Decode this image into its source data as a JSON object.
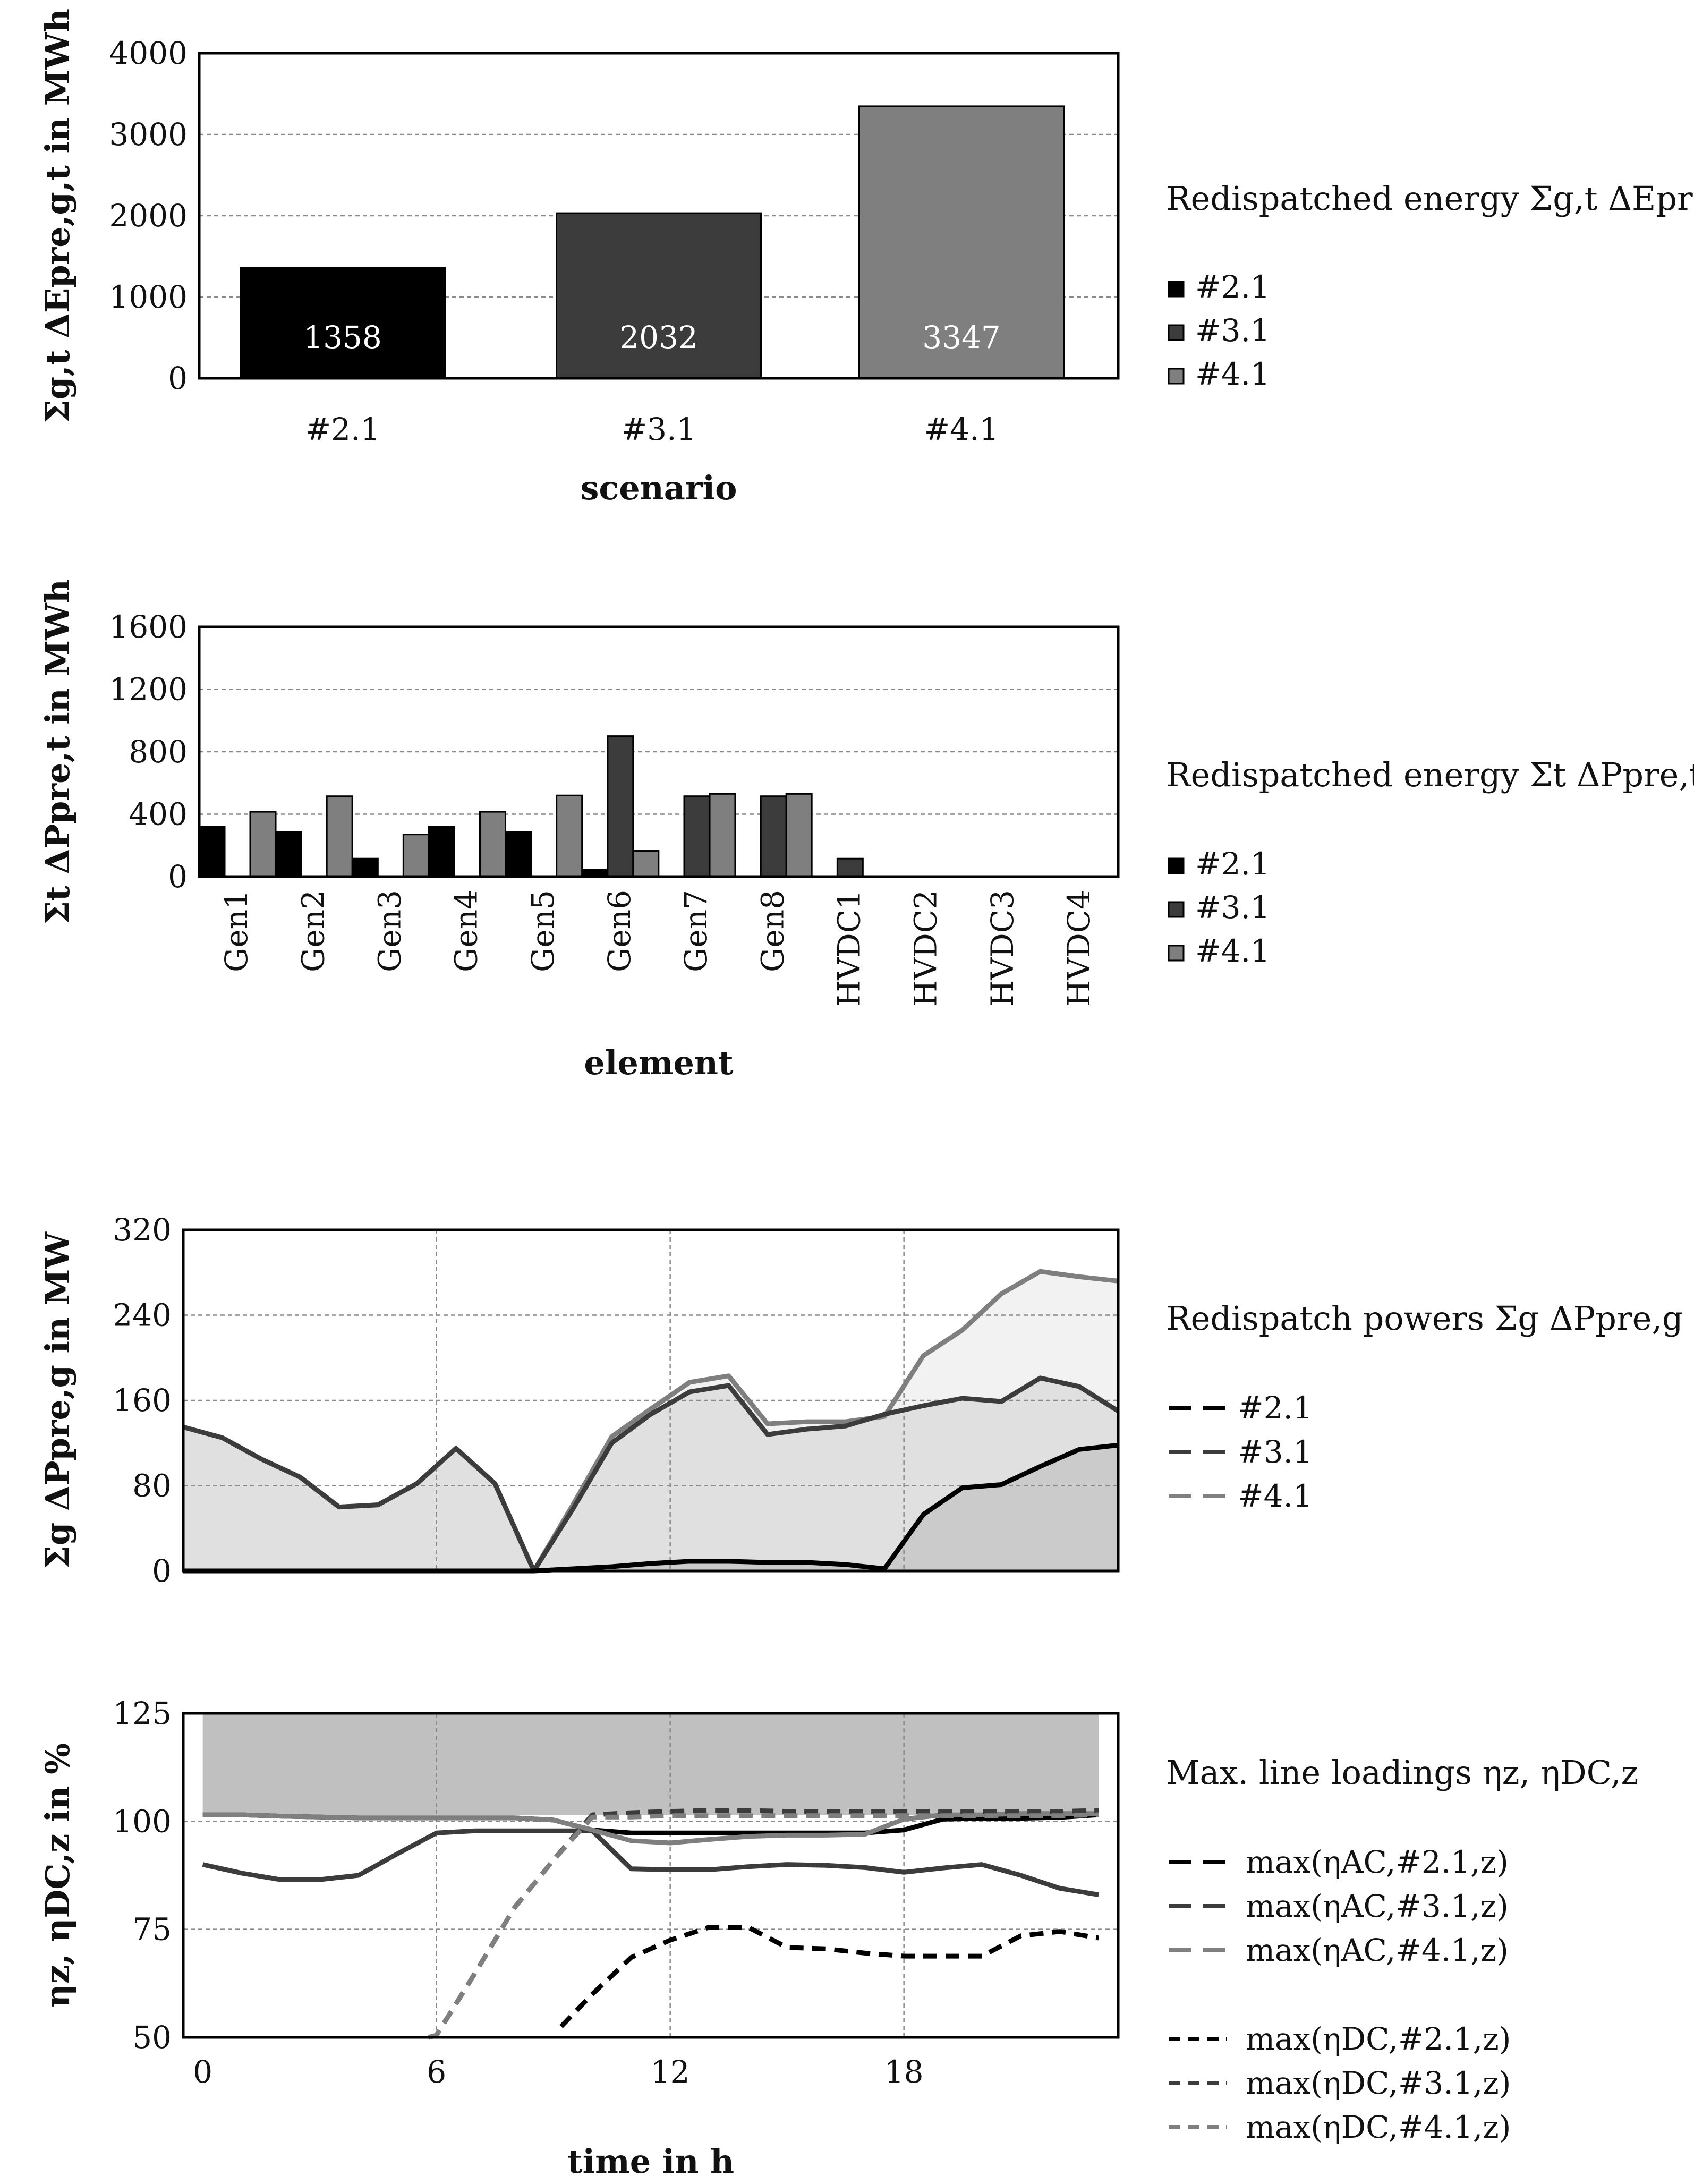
{
  "colors": {
    "s21": "#000000",
    "s31": "#3c3c3c",
    "s41": "#7f7f7f",
    "grid": "#8a8a8a",
    "fill_band": "#c0c0c0",
    "area_light": "#f2f2f2",
    "area_mid": "#e0e0e0",
    "area_dark": "#cbcbcb"
  },
  "chart_data": [
    {
      "id": "chart1",
      "type": "bar",
      "title": "",
      "ylabel": "Σg,t ΔEpre,g,t in MWh",
      "xlabel": "scenario",
      "categories": [
        "#2.1",
        "#3.1",
        "#4.1"
      ],
      "values": [
        1358,
        2032,
        3347
      ],
      "data_labels": [
        "1358",
        "2032",
        "3347"
      ],
      "ylim": [
        0,
        4000
      ],
      "yticks": [
        "0",
        "1000",
        "2000",
        "3000",
        "4000"
      ],
      "grid": true,
      "legend": {
        "title_text": "Redispatched energy Σg,t ΔEpre,g,t",
        "entries": [
          "#2.1",
          "#3.1",
          "#4.1"
        ],
        "placement": "right"
      }
    },
    {
      "id": "chart2",
      "type": "bar",
      "title": "",
      "ylabel": "Σt ΔPpre,t in MWh",
      "xlabel": "element",
      "categories": [
        "Gen1",
        "Gen2",
        "Gen3",
        "Gen4",
        "Gen5",
        "Gen6",
        "Gen7",
        "Gen8",
        "HVDC1",
        "HVDC2",
        "HVDC3",
        "HVDC4"
      ],
      "series": [
        {
          "name": "#2.1",
          "values": [
            320,
            285,
            115,
            320,
            285,
            45,
            0,
            0,
            0,
            0,
            0,
            0
          ]
        },
        {
          "name": "#3.1",
          "values": [
            0,
            0,
            0,
            0,
            0,
            900,
            515,
            515,
            115,
            0,
            0,
            0
          ]
        },
        {
          "name": "#4.1",
          "values": [
            415,
            515,
            270,
            415,
            520,
            165,
            530,
            530,
            0,
            0,
            0,
            0
          ]
        }
      ],
      "ylim": [
        0,
        1600
      ],
      "yticks": [
        "0",
        "400",
        "800",
        "1200",
        "1600"
      ],
      "grid": true,
      "legend": {
        "title_text": "Redispatched energy Σt ΔPpre,t",
        "entries": [
          "#2.1",
          "#3.1",
          "#4.1"
        ],
        "placement": "right"
      }
    },
    {
      "id": "chart3",
      "type": "area",
      "title": "",
      "ylabel": "Σg ΔPpre,g in MW",
      "xlabel": "",
      "x": [
        -0.5,
        0.5,
        1.5,
        2.5,
        3.5,
        4.5,
        5.5,
        6.5,
        7.5,
        8.5,
        9.5,
        10.5,
        11.5,
        12.5,
        13.5,
        14.5,
        15.5,
        16.5,
        17.5,
        18.5,
        19.5,
        20.5,
        21.5,
        22.5,
        23.5
      ],
      "series": [
        {
          "name": "#2.1",
          "values": [
            0,
            0,
            0,
            0,
            0,
            0,
            0,
            0,
            0,
            0,
            2,
            4,
            7,
            9,
            9,
            8,
            8,
            6,
            2,
            53,
            78,
            81,
            98,
            114,
            118
          ]
        },
        {
          "name": "#3.1",
          "values": [
            135,
            125,
            105,
            88,
            60,
            62,
            82,
            115,
            82,
            0,
            58,
            120,
            147,
            168,
            174,
            128,
            133,
            136,
            147,
            155,
            162,
            159,
            181,
            173,
            150
          ]
        },
        {
          "name": "#4.1",
          "values": [
            135,
            125,
            105,
            88,
            60,
            62,
            82,
            115,
            82,
            0,
            62,
            126,
            152,
            177,
            183,
            138,
            140,
            140,
            145,
            202,
            226,
            260,
            281,
            276,
            272
          ]
        }
      ],
      "ylim": [
        0,
        320
      ],
      "yticks": [
        "0",
        "80",
        "160",
        "240",
        "320"
      ],
      "xlim": [
        -0.5,
        23.5
      ],
      "grid": true,
      "legend": {
        "title_text": "Redispatch powers Σg ΔPpre,g",
        "entries": [
          "#2.1",
          "#3.1",
          "#4.1"
        ],
        "placement": "right"
      }
    },
    {
      "id": "chart4",
      "type": "line",
      "title": "",
      "ylabel": "ηz, ηDC,z in %",
      "xlabel": "time in h",
      "xticks": [
        "0",
        "6",
        "12",
        "18"
      ],
      "xlim": [
        -0.5,
        23.5
      ],
      "ylim": [
        50,
        125
      ],
      "yticks": [
        "50",
        "75",
        "100",
        "125"
      ],
      "grid": true,
      "band": {
        "x_from": 0,
        "x_to": 23,
        "y_from": 101.5,
        "y_to": 125
      },
      "series": [
        {
          "name": "max(ηAC,#2.1,z)",
          "style": "solid",
          "x": [
            0,
            1,
            2,
            3,
            4,
            5,
            6,
            7,
            8,
            9,
            10,
            11,
            12,
            13,
            14,
            15,
            16,
            17,
            18,
            19,
            20,
            21,
            22,
            23
          ],
          "values": [
            101.5,
            101.5,
            101.2,
            101,
            100.8,
            100.8,
            100.8,
            100.8,
            100.8,
            100.3,
            98,
            97.3,
            97.3,
            97.3,
            97.3,
            97.3,
            97.3,
            97.3,
            98,
            100.5,
            100.7,
            100.7,
            100.9,
            101.5
          ]
        },
        {
          "name": "max(ηAC,#3.1,z)",
          "style": "solid",
          "x": [
            0,
            1,
            2,
            3,
            4,
            5,
            6,
            7,
            8,
            9,
            10,
            11,
            12,
            13,
            14,
            15,
            16,
            17,
            18,
            19,
            20,
            21,
            22,
            23
          ],
          "values": [
            90,
            88,
            86.5,
            86.5,
            87.5,
            92.5,
            97.3,
            97.8,
            97.8,
            97.8,
            97.8,
            89,
            88.8,
            88.8,
            89.5,
            90,
            89.8,
            89.3,
            88.2,
            89.2,
            90,
            87.5,
            84.5,
            83
          ]
        },
        {
          "name": "max(ηAC,#4.1,z)",
          "style": "solid",
          "x": [
            0,
            1,
            2,
            3,
            4,
            5,
            6,
            7,
            8,
            9,
            10,
            11,
            12,
            13,
            14,
            15,
            16,
            17,
            18,
            19,
            20,
            21,
            22,
            23
          ],
          "values": [
            101.5,
            101.5,
            101.2,
            101,
            100.8,
            100.8,
            100.8,
            100.8,
            100.8,
            100.3,
            98,
            95.5,
            95,
            95.8,
            96.5,
            96.8,
            96.8,
            97,
            100.5,
            101.5,
            101.5,
            101.8,
            101.8,
            101.8
          ]
        },
        {
          "name": "max(ηDC,#2.1,z)",
          "style": "dashed",
          "x": [
            9.2,
            10,
            11,
            12,
            13,
            14,
            15,
            16,
            17,
            18,
            19,
            20,
            21,
            22,
            23
          ],
          "values": [
            52.5,
            60,
            68.5,
            72.5,
            75.5,
            75.5,
            70.8,
            70.5,
            69.5,
            68.8,
            68.8,
            68.8,
            73.5,
            74.5,
            73
          ]
        },
        {
          "name": "max(ηDC,#3.1,z)",
          "style": "dashed",
          "x": [
            5.8,
            6,
            7,
            8,
            9,
            10,
            11,
            12,
            13,
            14,
            15,
            16,
            17,
            18,
            19,
            20,
            21,
            22,
            23
          ],
          "values": [
            50,
            50.5,
            65,
            80,
            91,
            101.5,
            102,
            102.3,
            102.5,
            102.5,
            102.3,
            102.3,
            102.3,
            102.3,
            102.3,
            102.3,
            102.3,
            102.3,
            102.5
          ]
        },
        {
          "name": "max(ηDC,#4.1,z)",
          "style": "dashed",
          "x": [
            5.8,
            6,
            7,
            8,
            9,
            10,
            11,
            12,
            13,
            14,
            15,
            16,
            17,
            18,
            19,
            20,
            21,
            22,
            23
          ],
          "values": [
            50,
            50.5,
            65,
            80,
            91,
            101,
            101,
            101.3,
            101.3,
            101.3,
            101.3,
            101.3,
            101.3,
            101.3,
            101.3,
            101.3,
            101.3,
            101.3,
            101.5
          ]
        }
      ],
      "legend": {
        "title_text": "Max. line loadings ηz, ηDC,z",
        "entries": [
          "max(ηAC,#2.1,z)",
          "max(ηAC,#3.1,z)",
          "max(ηAC,#4.1,z)",
          "max(ηDC,#2.1,z)",
          "max(ηDC,#3.1,z)",
          "max(ηDC,#4.1,z)"
        ],
        "placement": "right"
      }
    }
  ]
}
